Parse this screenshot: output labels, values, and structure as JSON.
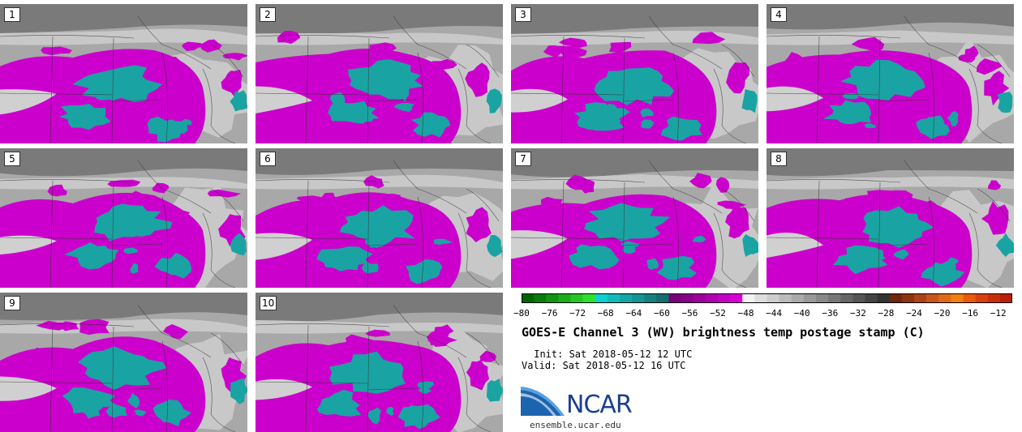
{
  "panels": [
    {
      "label": "1"
    },
    {
      "label": "2"
    },
    {
      "label": "3"
    },
    {
      "label": "4"
    },
    {
      "label": "5"
    },
    {
      "label": "6"
    },
    {
      "label": "7"
    },
    {
      "label": "8"
    },
    {
      "label": "9"
    },
    {
      "label": "10"
    }
  ],
  "colorbar": {
    "ticks": [
      "−80",
      "−76",
      "−72",
      "−68",
      "−64",
      "−60",
      "−56",
      "−52",
      "−48",
      "−44",
      "−40",
      "−36",
      "−32",
      "−28",
      "−24",
      "−20",
      "−16",
      "−12"
    ],
    "tick_values": [
      -80,
      -76,
      -72,
      -68,
      -64,
      -60,
      -56,
      -52,
      -48,
      -44,
      -40,
      -36,
      -32,
      -28,
      -24,
      -20,
      -16,
      -12
    ],
    "range": [
      -80,
      -10
    ],
    "bin_colors": [
      "#006400",
      "#0a7a0a",
      "#129412",
      "#1cac1c",
      "#25c625",
      "#30e030",
      "#0fd0d0",
      "#10baba",
      "#13a6a6",
      "#149494",
      "#168080",
      "#156d6d",
      "#7a007a",
      "#8a008a",
      "#9e009e",
      "#b000b0",
      "#c400c4",
      "#d800d8",
      "#f2f2f2",
      "#dedede",
      "#cdcdcd",
      "#bbbbbb",
      "#aaaaaa",
      "#999999",
      "#888888",
      "#777777",
      "#666666",
      "#555555",
      "#444444",
      "#333333",
      "#6e2810",
      "#8c3414",
      "#aa4418",
      "#c8561c",
      "#e06a18",
      "#f28010",
      "#e85a10",
      "#d84010",
      "#c8300c",
      "#b82008"
    ]
  },
  "map_colors": {
    "teal": "#1aa3a3",
    "magenta": "#cc00cc",
    "light": "#c8c8c8",
    "mid": "#a8a8a8",
    "dark": "#7a7a7a"
  },
  "title": "GOES-E Channel 3 (WV) brightness temp postage stamp (C)",
  "init": " Init: Sat 2018-05-12 12 UTC",
  "valid": "Valid: Sat 2018-05-12 16 UTC",
  "logo": {
    "text": "NCAR",
    "site": "ensemble.ucar.edu"
  }
}
